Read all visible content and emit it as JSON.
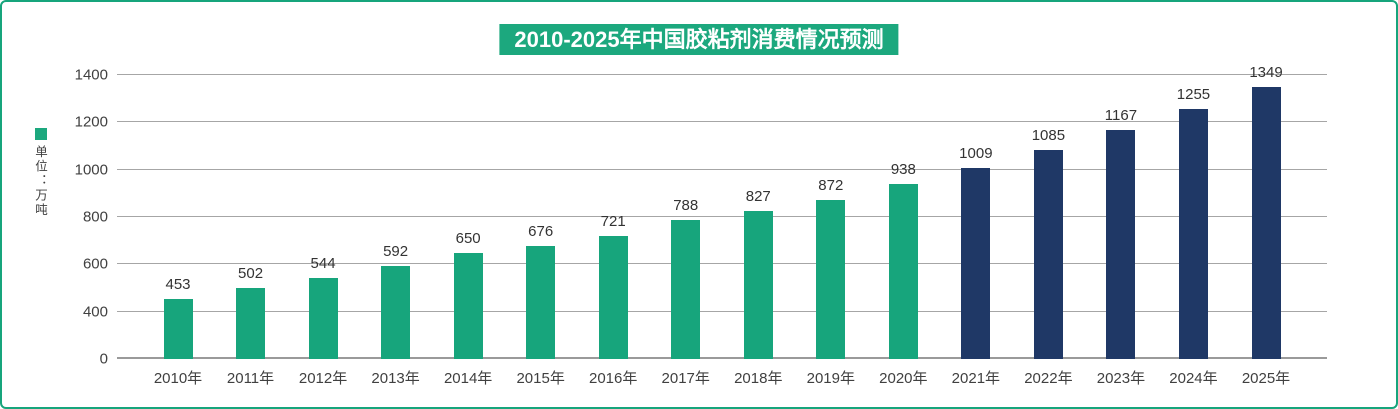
{
  "title": {
    "text": "2010-2025年中国胶粘剂消费情况预测"
  },
  "legend": {
    "unit_label": "单位：万吨"
  },
  "colors": {
    "border": "#17a57c",
    "title_bg": "#1ca87e",
    "title_text": "#ffffff",
    "bar_green": "#17a57c",
    "bar_navy": "#1f3866",
    "gridline": "#a6a6a6",
    "axis_text": "#404040",
    "value_text": "#333333"
  },
  "chart_data": {
    "type": "bar",
    "title": "2010-2025年中国胶粘剂消费情况预测",
    "unit_label": "单位：万吨",
    "categories": [
      "2010年",
      "2011年",
      "2012年",
      "2013年",
      "2014年",
      "2015年",
      "2016年",
      "2017年",
      "2018年",
      "2019年",
      "2020年",
      "2021年",
      "2022年",
      "2023年",
      "2024年",
      "2025年"
    ],
    "values": [
      453,
      502,
      544,
      592,
      650,
      676,
      721,
      788,
      827,
      872,
      938,
      1009,
      1085,
      1167,
      1255,
      1349
    ],
    "bars": [
      {
        "category": "2010年",
        "value": 453,
        "color": "#17a57c"
      },
      {
        "category": "2011年",
        "value": 502,
        "color": "#17a57c"
      },
      {
        "category": "2012年",
        "value": 544,
        "color": "#17a57c"
      },
      {
        "category": "2013年",
        "value": 592,
        "color": "#17a57c"
      },
      {
        "category": "2014年",
        "value": 650,
        "color": "#17a57c"
      },
      {
        "category": "2015年",
        "value": 676,
        "color": "#17a57c"
      },
      {
        "category": "2016年",
        "value": 721,
        "color": "#17a57c"
      },
      {
        "category": "2017年",
        "value": 788,
        "color": "#17a57c"
      },
      {
        "category": "2018年",
        "value": 827,
        "color": "#17a57c"
      },
      {
        "category": "2019年",
        "value": 872,
        "color": "#17a57c"
      },
      {
        "category": "2020年",
        "value": 938,
        "color": "#17a57c"
      },
      {
        "category": "2021年",
        "value": 1009,
        "color": "#1f3866"
      },
      {
        "category": "2022年",
        "value": 1085,
        "color": "#1f3866"
      },
      {
        "category": "2023年",
        "value": 1167,
        "color": "#1f3866"
      },
      {
        "category": "2024年",
        "value": 1255,
        "color": "#1f3866"
      },
      {
        "category": "2025年",
        "value": 1349,
        "color": "#1f3866"
      }
    ],
    "y_axis_tick_labels": [
      "0",
      "400",
      "600",
      "800",
      "1000",
      "1200",
      "1400"
    ],
    "ylim": [
      0,
      1400
    ],
    "grid": true,
    "value_labels": true,
    "legend_position": "left"
  }
}
